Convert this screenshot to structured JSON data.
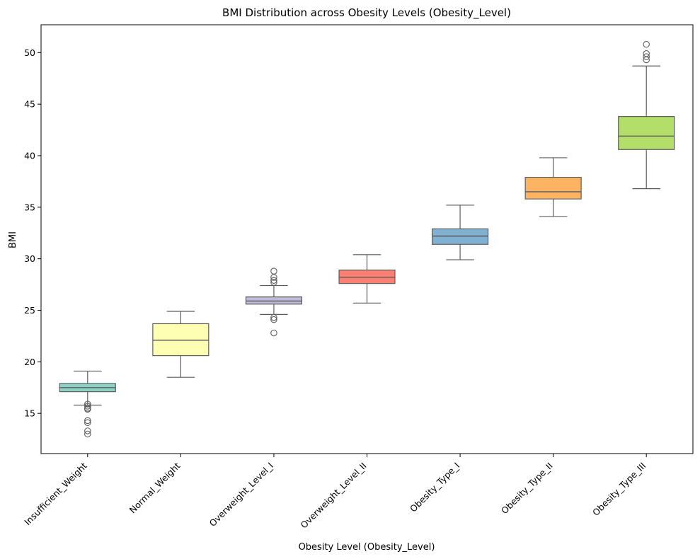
{
  "chart_data": {
    "type": "box",
    "title": "BMI Distribution across Obesity Levels (Obesity_Level)",
    "xlabel": "Obesity Level (Obesity_Level)",
    "ylabel": "BMI",
    "ylim": [
      11.1,
      52.7
    ],
    "yticks": [
      15,
      20,
      25,
      30,
      35,
      40,
      45,
      50
    ],
    "ytick_labels": [
      "15",
      "20",
      "25",
      "30",
      "35",
      "40",
      "45",
      "50"
    ],
    "categories": [
      "Insufficient_Weight",
      "Normal_Weight",
      "Overweight_Level_I",
      "Overweight_Level_II",
      "Obesity_Type_I",
      "Obesity_Type_II",
      "Obesity_Type_III"
    ],
    "boxes": [
      {
        "category": "Insufficient_Weight",
        "whisker_low": 15.8,
        "q1": 17.1,
        "median": 17.5,
        "q3": 17.9,
        "whisker_high": 19.1,
        "outliers": [
          15.9,
          15.7,
          15.5,
          15.4,
          14.3,
          14.1,
          13.3,
          13.0
        ],
        "color": "#8dd3c7"
      },
      {
        "category": "Normal_Weight",
        "whisker_low": 18.5,
        "q1": 20.6,
        "median": 22.1,
        "q3": 23.7,
        "whisker_high": 24.9,
        "outliers": [],
        "color": "#ffffb3"
      },
      {
        "category": "Overweight_Level_I",
        "whisker_low": 24.6,
        "q1": 25.6,
        "median": 25.9,
        "q3": 26.3,
        "whisker_high": 27.4,
        "outliers": [
          28.8,
          28.2,
          27.9,
          27.7,
          24.3,
          24.1,
          22.8
        ],
        "color": "#bebada"
      },
      {
        "category": "Overweight_Level_II",
        "whisker_low": 25.7,
        "q1": 27.6,
        "median": 28.2,
        "q3": 28.9,
        "whisker_high": 30.4,
        "outliers": [],
        "color": "#fb8072"
      },
      {
        "category": "Obesity_Type_I",
        "whisker_low": 29.9,
        "q1": 31.4,
        "median": 32.2,
        "q3": 32.9,
        "whisker_high": 35.2,
        "outliers": [],
        "color": "#80b1d3"
      },
      {
        "category": "Obesity_Type_II",
        "whisker_low": 34.1,
        "q1": 35.8,
        "median": 36.5,
        "q3": 37.9,
        "whisker_high": 39.8,
        "outliers": [],
        "color": "#fdb462"
      },
      {
        "category": "Obesity_Type_III",
        "whisker_low": 36.8,
        "q1": 40.6,
        "median": 41.9,
        "q3": 43.8,
        "whisker_high": 48.7,
        "outliers": [
          50.8,
          49.9,
          49.6,
          49.3
        ],
        "color": "#b3de69"
      }
    ],
    "grid": false,
    "legend": "none"
  }
}
